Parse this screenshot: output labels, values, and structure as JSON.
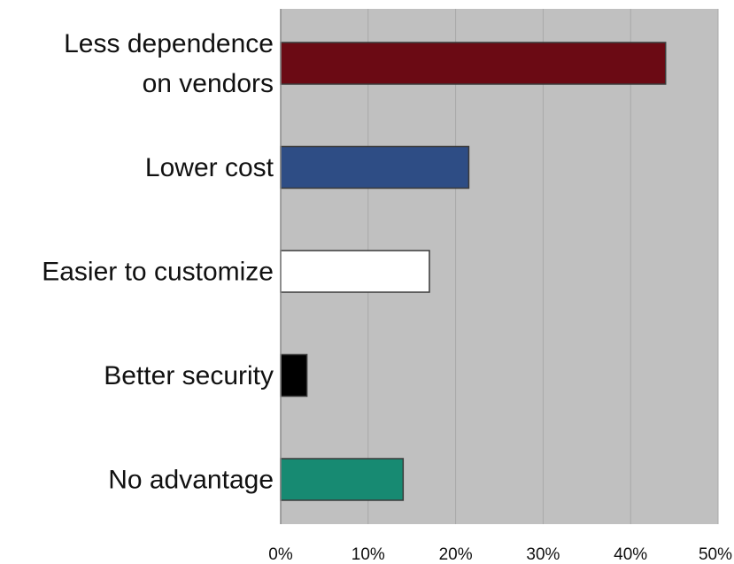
{
  "chart_data": {
    "type": "bar",
    "orientation": "horizontal",
    "title": "",
    "xlabel": "",
    "ylabel": "",
    "categories": [
      [
        "Less dependence",
        "on vendors"
      ],
      [
        "Lower cost"
      ],
      [
        "Easier to customize"
      ],
      [
        "Better security"
      ],
      [
        "No advantage"
      ]
    ],
    "values": [
      44,
      21.5,
      17,
      3,
      14
    ],
    "unit": "%",
    "xlim": [
      0,
      50
    ],
    "xticks": [
      0,
      10,
      20,
      30,
      40,
      50
    ],
    "tick_labels": [
      "0%",
      "10%",
      "20%",
      "30%",
      "40%",
      "50%"
    ],
    "colors": [
      "#6b0a14",
      "#2e4d85",
      "#ffffff",
      "#000000",
      "#178a72"
    ],
    "plot_background": "#c0c0c0",
    "grid": true,
    "legend": false
  }
}
